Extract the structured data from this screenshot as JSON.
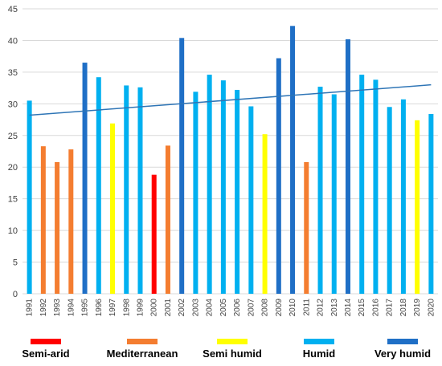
{
  "chart_data": {
    "type": "bar",
    "title": "",
    "xlabel": "",
    "ylabel": "",
    "ylim": [
      0,
      45
    ],
    "yticks": [
      0,
      5,
      10,
      15,
      20,
      25,
      30,
      35,
      40,
      45
    ],
    "grid": true,
    "legend_position": "bottom",
    "categories": [
      "1991",
      "1992",
      "1993",
      "1994",
      "1995",
      "1996",
      "1997",
      "1998",
      "1999",
      "2000",
      "2001",
      "2002",
      "2003",
      "2004",
      "2005",
      "2006",
      "2007",
      "2008",
      "2009",
      "2010",
      "2011",
      "2012",
      "2013",
      "2014",
      "2015",
      "2016",
      "2017",
      "2018",
      "2019",
      "2020"
    ],
    "values": [
      30.5,
      23.3,
      20.8,
      22.8,
      36.5,
      34.2,
      26.9,
      32.9,
      32.6,
      18.8,
      23.4,
      40.4,
      31.9,
      34.6,
      33.7,
      32.2,
      29.6,
      25.2,
      37.2,
      42.3,
      20.8,
      32.7,
      31.5,
      40.2,
      34.6,
      33.8,
      29.5,
      30.7,
      27.4,
      28.4
    ],
    "classes": [
      "Humid",
      "Mediterranean",
      "Mediterranean",
      "Mediterranean",
      "Very humid",
      "Humid",
      "Semi humid",
      "Humid",
      "Humid",
      "Semi-arid",
      "Mediterranean",
      "Very humid",
      "Humid",
      "Humid",
      "Humid",
      "Humid",
      "Humid",
      "Semi humid",
      "Very humid",
      "Very humid",
      "Mediterranean",
      "Humid",
      "Humid",
      "Very humid",
      "Humid",
      "Humid",
      "Humid",
      "Humid",
      "Semi humid",
      "Humid"
    ],
    "legend": [
      {
        "name": "Semi-arid",
        "color": "#ff0000"
      },
      {
        "name": "Mediterranean",
        "color": "#f47d30"
      },
      {
        "name": "Semi humid",
        "color": "#ffff00"
      },
      {
        "name": "Humid",
        "color": "#00b0f0"
      },
      {
        "name": "Very humid",
        "color": "#1f6fc6"
      }
    ],
    "trendline": {
      "type": "linear",
      "start_value": 28.2,
      "end_value": 33.0,
      "color": "#2e75b6"
    }
  }
}
